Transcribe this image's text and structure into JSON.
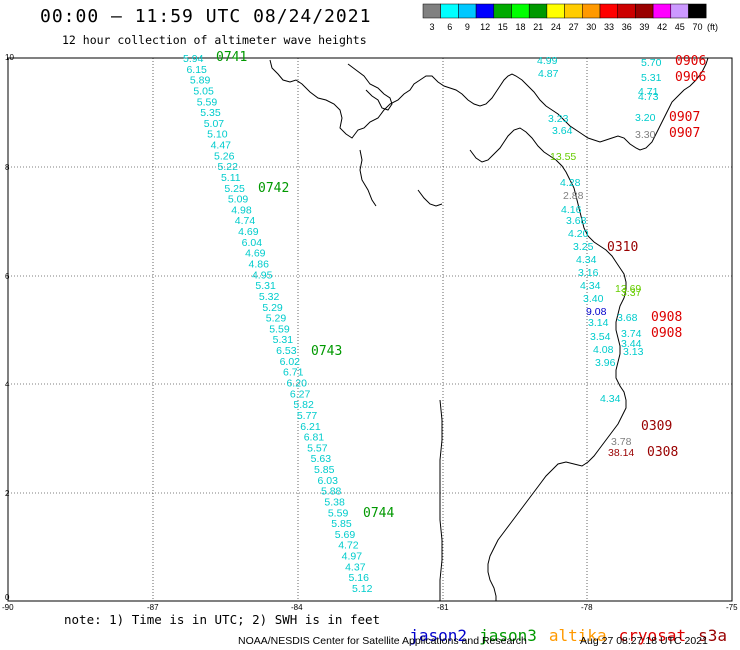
{
  "title": "00:00 – 11:59 UTC 08/24/2021",
  "subtitle": "12 hour collection of altimeter wave heights",
  "colorbar": {
    "labels": [
      "3",
      "6",
      "9",
      "12",
      "15",
      "18",
      "21",
      "24",
      "27",
      "30",
      "33",
      "36",
      "39",
      "42",
      "45",
      "70"
    ],
    "unit": "(ft)",
    "colors": [
      "#808080",
      "#00ffff",
      "#00c8ff",
      "#0000ff",
      "#00aa00",
      "#00ff00",
      "#009900",
      "#ffff00",
      "#ffcc00",
      "#ff9900",
      "#ff0000",
      "#cc0000",
      "#990000",
      "#ff00ff",
      "#cc99ff",
      "#000000"
    ]
  },
  "axes": {
    "x_ticks": [
      "-90",
      "-87",
      "-84",
      "-81",
      "-78",
      "-75"
    ],
    "y_ticks": [
      "10",
      "8",
      "6",
      "4",
      "2",
      "0"
    ]
  },
  "tracks": [
    {
      "name": "0741",
      "color": "#00cccc",
      "pass_color": "#009900",
      "values": [
        "5.94",
        "6.15",
        "5.89",
        "5.05",
        "5.59",
        "5.35",
        "5.07",
        "5.10",
        "4.47",
        "5.26",
        "5.22",
        "5.11",
        "5.25",
        "5.09",
        "4.98",
        "4.74",
        "4.69",
        "6.04",
        "4.69",
        "4.86",
        "4.95",
        "5.31",
        "5.32",
        "5.29",
        "5.29",
        "5.59",
        "5.31",
        "6.53",
        "6.02",
        "6.71",
        "6.20",
        "6.27",
        "5.82",
        "5.77",
        "6.21",
        "6.81",
        "5.57",
        "5.63",
        "5.85",
        "6.03",
        "5.88",
        "5.38",
        "5.59",
        "5.85",
        "5.69",
        "4.72",
        "4.97",
        "4.37",
        "5.16",
        "5.12"
      ]
    },
    {
      "name": "0906",
      "color": "#00cccc",
      "values": [
        "5.70",
        "5.31",
        "4.71",
        "4.73",
        "3.20"
      ]
    },
    {
      "name": "0310",
      "color": "#00cccc",
      "values": [
        "4.99",
        "4.87",
        "3.23",
        "3.64",
        "4.28",
        "4.16",
        "3.68",
        "4.20",
        "3.25",
        "4.34",
        "3.16",
        "4.34",
        "3.40",
        "3.14",
        "3.54",
        "4.08",
        "3.96",
        "4.34"
      ]
    },
    {
      "name": "0908",
      "color": "#00cccc",
      "values": [
        "3.68",
        "3.74",
        "3.44",
        "3.13"
      ]
    }
  ],
  "other_values": {
    "gray": [
      "3.30",
      "2.88",
      "3.78"
    ],
    "green": [
      "13.55",
      "13.69",
      "3.37"
    ],
    "blue": [
      "9.08"
    ],
    "darkred": [
      "38.14"
    ]
  },
  "pass_labels": [
    {
      "text": "0741",
      "color": "#009900"
    },
    {
      "text": "0742",
      "color": "#009900"
    },
    {
      "text": "0743",
      "color": "#009900"
    },
    {
      "text": "0744",
      "color": "#009900"
    },
    {
      "text": "0906",
      "color": "#dd0000"
    },
    {
      "text": "0906",
      "color": "#dd0000"
    },
    {
      "text": "0907",
      "color": "#dd0000"
    },
    {
      "text": "0907",
      "color": "#dd0000"
    },
    {
      "text": "0310",
      "color": "#990000"
    },
    {
      "text": "0908",
      "color": "#dd0000"
    },
    {
      "text": "0908",
      "color": "#dd0000"
    },
    {
      "text": "0309",
      "color": "#990000"
    },
    {
      "text": "0308",
      "color": "#990000"
    }
  ],
  "note": "note: 1) Time is in UTC; 2) SWH is in feet",
  "legend": [
    {
      "label": "jason2",
      "color": "#0000cc"
    },
    {
      "label": "jason3",
      "color": "#009900"
    },
    {
      "label": "altika",
      "color": "#ff9900"
    },
    {
      "label": "cryosat",
      "color": "#dd0000"
    },
    {
      "label": "s3a",
      "color": "#990000"
    }
  ],
  "credit": "NOAA/NESDIS Center for Satellite Applications and Research",
  "credit_date": "Aug 27 08:27:18 UTC 2021"
}
